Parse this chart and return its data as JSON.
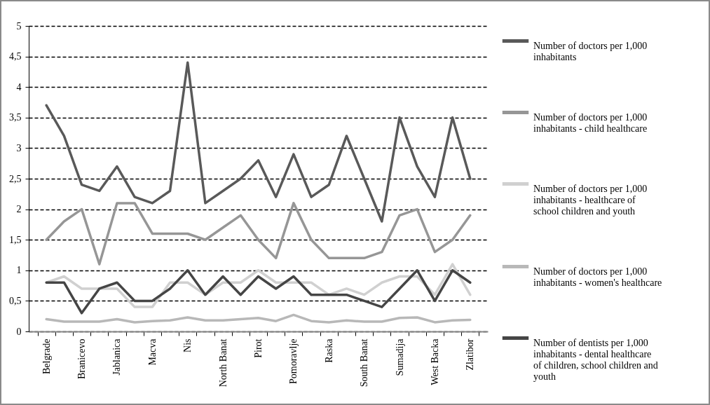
{
  "chart_data": {
    "type": "line",
    "categories": [
      "Belgrade",
      null,
      "Branicevo",
      null,
      "Jablanica",
      null,
      "Macva",
      null,
      "Nis",
      null,
      "North Banat",
      null,
      "Pirot",
      null,
      "Pomoravlje",
      null,
      "Raska",
      null,
      "South Banat",
      null,
      "Sumadija",
      null,
      "West Backa",
      null,
      "Zlatibor"
    ],
    "series": [
      {
        "name": "Number of doctors per 1,000 inhabitants",
        "color": "#595959",
        "values": [
          3.7,
          3.2,
          2.4,
          2.3,
          2.7,
          2.2,
          2.1,
          2.3,
          4.4,
          2.1,
          2.3,
          2.5,
          2.8,
          2.2,
          2.9,
          2.2,
          2.4,
          3.2,
          2.5,
          1.8,
          3.5,
          2.7,
          2.2,
          3.5,
          2.5
        ]
      },
      {
        "name": "Number of doctors per 1,000 inhabitants - child healthcare",
        "color": "#969696",
        "values": [
          1.5,
          1.8,
          2.0,
          1.1,
          2.1,
          2.1,
          1.6,
          1.6,
          1.6,
          1.5,
          1.7,
          1.9,
          1.5,
          1.2,
          2.1,
          1.5,
          1.2,
          1.2,
          1.2,
          1.3,
          1.9,
          2.0,
          1.3,
          1.5,
          1.9
        ]
      },
      {
        "name": "Number of doctors per 1,000 inhabitants - healthcare of school children and youth",
        "color": "#d0d0d0",
        "values": [
          0.8,
          0.9,
          0.7,
          0.7,
          0.7,
          0.4,
          0.4,
          0.8,
          0.8,
          0.6,
          0.8,
          0.8,
          1.0,
          0.8,
          0.8,
          0.8,
          0.6,
          0.7,
          0.6,
          0.8,
          0.9,
          0.9,
          0.6,
          1.1,
          0.6
        ]
      },
      {
        "name": "Number of doctors per 1,000 inhabitants - women's healthcare",
        "color": "#b8b8b8",
        "values": [
          0.2,
          0.16,
          0.16,
          0.16,
          0.2,
          0.15,
          0.17,
          0.18,
          0.23,
          0.18,
          0.18,
          0.2,
          0.22,
          0.17,
          0.27,
          0.17,
          0.15,
          0.18,
          0.16,
          0.16,
          0.22,
          0.23,
          0.15,
          0.18,
          0.19
        ]
      },
      {
        "name": "Number of dentists per 1,000 inhabitants - dental healthcare of children, school children and youth",
        "color": "#454545",
        "values": [
          0.8,
          0.8,
          0.3,
          0.7,
          0.8,
          0.5,
          0.5,
          0.7,
          1.0,
          0.6,
          0.9,
          0.6,
          0.9,
          0.7,
          0.9,
          0.6,
          0.6,
          0.6,
          0.5,
          0.4,
          0.7,
          1.0,
          0.5,
          1.0,
          0.8
        ]
      }
    ],
    "ylim": [
      0,
      5
    ],
    "yticks": [
      0,
      {
        "value": 0.5,
        "label": "0,5"
      },
      1,
      {
        "value": 1.5,
        "label": "1,5"
      },
      2,
      {
        "value": 2.5,
        "label": "2,5"
      },
      3,
      {
        "value": 3.5,
        "label": "3,5"
      },
      4,
      {
        "value": 4.5,
        "label": "4,5"
      },
      5
    ],
    "grid": "y",
    "legend": "right",
    "marker": "none",
    "line_style": "solid"
  }
}
